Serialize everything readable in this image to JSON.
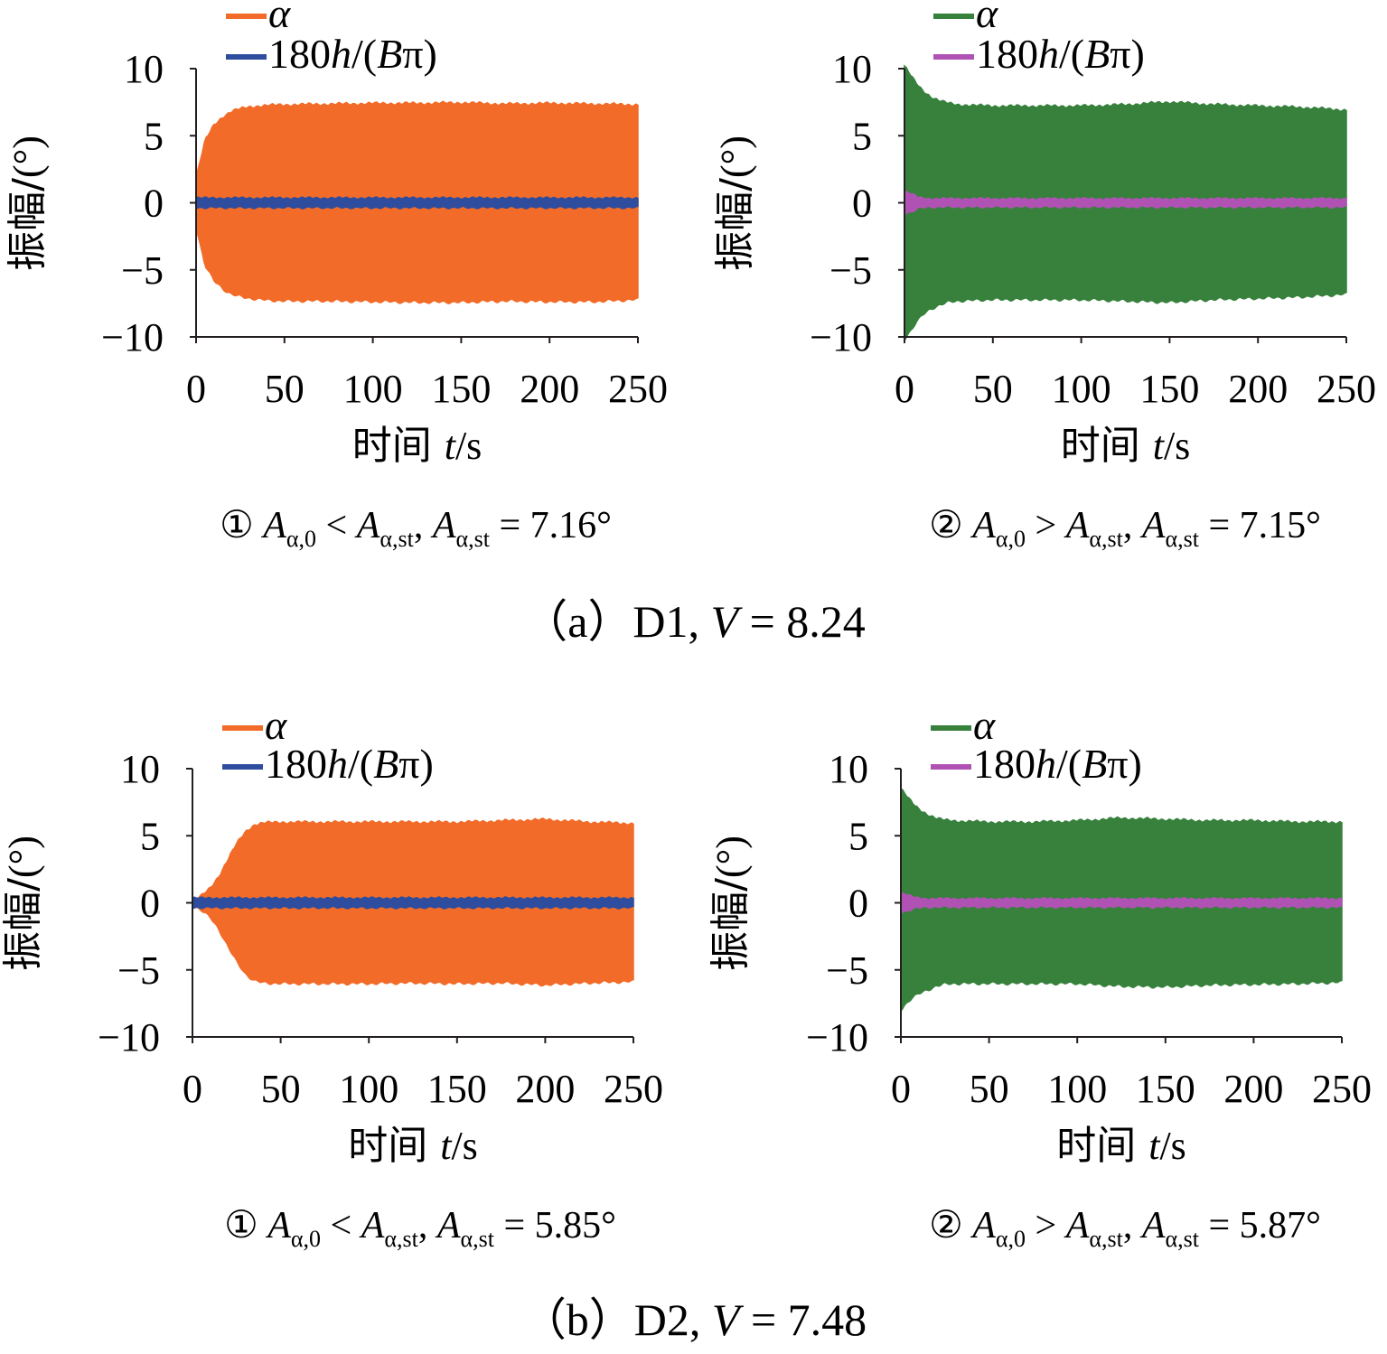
{
  "figure": {
    "group_captions": [
      {
        "prefix": "（a）D1, ",
        "var": "V",
        "rest": " = 8.24"
      },
      {
        "prefix": "（b）D2, ",
        "var": "V",
        "rest": " = 7.48"
      }
    ]
  },
  "chart_data": [
    {
      "type": "area",
      "panel": "a1",
      "xlabel": "时间 t/s",
      "ylabel": "振幅/(°)",
      "xlim": [
        0,
        250
      ],
      "ylim": [
        -10,
        10
      ],
      "xticks": [
        "0",
        "50",
        "100",
        "150",
        "200",
        "250"
      ],
      "yticks": [
        "10",
        "5",
        "0",
        "−5",
        "−10"
      ],
      "caption": "① Aα,0 < Aα,st, Aα,st = 7.16°",
      "series": [
        {
          "name": "α",
          "color": "#f26b28",
          "kind": "envelope",
          "x": [
            0,
            5,
            10,
            15,
            20,
            25,
            30,
            40,
            50,
            75,
            100,
            125,
            150,
            175,
            200,
            225,
            250
          ],
          "upper": [
            1.8,
            4.6,
            5.8,
            6.4,
            6.8,
            7.0,
            7.15,
            7.25,
            7.3,
            7.35,
            7.4,
            7.4,
            7.45,
            7.35,
            7.4,
            7.35,
            7.3
          ],
          "lower": [
            -1.8,
            -4.6,
            -5.8,
            -6.4,
            -6.8,
            -7.0,
            -7.1,
            -7.25,
            -7.3,
            -7.3,
            -7.35,
            -7.4,
            -7.4,
            -7.3,
            -7.35,
            -7.35,
            -7.2
          ]
        },
        {
          "name": "180h/(Bπ)",
          "color": "#2e4d9e",
          "kind": "band",
          "x": [
            0,
            250
          ],
          "upper": [
            0.35,
            0.35
          ],
          "lower": [
            -0.35,
            -0.35
          ]
        }
      ]
    },
    {
      "type": "area",
      "panel": "a2",
      "xlabel": "时间 t/s",
      "ylabel": "振幅/(°)",
      "xlim": [
        0,
        250
      ],
      "ylim": [
        -10,
        10
      ],
      "xticks": [
        "0",
        "50",
        "100",
        "150",
        "200",
        "250"
      ],
      "yticks": [
        "10",
        "5",
        "0",
        "−5",
        "−10"
      ],
      "caption": "② Aα,0 > Aα,st, Aα,st = 7.15°",
      "series": [
        {
          "name": "α",
          "color": "#37813c",
          "kind": "envelope",
          "x": [
            0,
            3,
            6,
            10,
            15,
            20,
            25,
            30,
            40,
            50,
            75,
            100,
            125,
            150,
            175,
            200,
            225,
            250
          ],
          "upper": [
            10.2,
            9.6,
            9.0,
            8.4,
            7.9,
            7.6,
            7.4,
            7.3,
            7.25,
            7.2,
            7.2,
            7.2,
            7.3,
            7.5,
            7.3,
            7.2,
            7.1,
            6.9
          ],
          "lower": [
            -10.2,
            -9.6,
            -9.0,
            -8.4,
            -7.9,
            -7.6,
            -7.4,
            -7.3,
            -7.25,
            -7.2,
            -7.2,
            -7.2,
            -7.3,
            -7.4,
            -7.2,
            -7.1,
            -7.0,
            -6.8
          ]
        },
        {
          "name": "180h/(Bπ)",
          "color": "#b052b4",
          "kind": "band",
          "x": [
            0,
            3,
            8,
            15,
            250
          ],
          "upper": [
            0.8,
            0.7,
            0.4,
            0.3,
            0.3
          ],
          "lower": [
            -0.8,
            -0.7,
            -0.4,
            -0.3,
            -0.3
          ]
        }
      ]
    },
    {
      "type": "area",
      "panel": "b1",
      "xlabel": "时间 t/s",
      "ylabel": "振幅/(°)",
      "xlim": [
        0,
        250
      ],
      "ylim": [
        -10,
        10
      ],
      "xticks": [
        "0",
        "50",
        "100",
        "150",
        "200",
        "250"
      ],
      "yticks": [
        "10",
        "5",
        "0",
        "−5",
        "−10"
      ],
      "caption": "① Aα,0 < Aα,st, Aα,st  = 5.85°",
      "series": [
        {
          "name": "α",
          "color": "#f26b28",
          "kind": "envelope",
          "x": [
            0,
            5,
            10,
            15,
            20,
            25,
            30,
            35,
            40,
            50,
            75,
            100,
            125,
            150,
            175,
            200,
            225,
            250
          ],
          "upper": [
            0.2,
            0.5,
            1.1,
            2.0,
            3.2,
            4.4,
            5.3,
            5.8,
            5.95,
            6.0,
            6.0,
            6.0,
            6.0,
            6.0,
            6.1,
            6.2,
            6.0,
            5.9
          ],
          "lower": [
            -0.2,
            -0.5,
            -1.1,
            -2.0,
            -3.2,
            -4.4,
            -5.3,
            -5.8,
            -5.95,
            -6.0,
            -6.0,
            -6.0,
            -5.95,
            -6.0,
            -5.95,
            -6.1,
            -5.95,
            -5.85
          ]
        },
        {
          "name": "180h/(Bπ)",
          "color": "#2e4d9e",
          "kind": "band",
          "x": [
            0,
            250
          ],
          "upper": [
            0.35,
            0.35
          ],
          "lower": [
            -0.35,
            -0.35
          ]
        }
      ]
    },
    {
      "type": "area",
      "panel": "b2",
      "xlabel": "时间 t/s",
      "ylabel": "振幅/(°)",
      "xlim": [
        0,
        250
      ],
      "ylim": [
        -10,
        10
      ],
      "xticks": [
        "0",
        "50",
        "100",
        "150",
        "200",
        "250"
      ],
      "yticks": [
        "10",
        "5",
        "0",
        "−5",
        "−10"
      ],
      "caption": "② Aα,0 > Aα,st, Aα,st = 5.87°",
      "series": [
        {
          "name": "α",
          "color": "#37813c",
          "kind": "envelope",
          "x": [
            0,
            3,
            6,
            10,
            15,
            20,
            25,
            30,
            40,
            50,
            75,
            100,
            125,
            150,
            175,
            200,
            225,
            250
          ],
          "upper": [
            8.5,
            8.0,
            7.5,
            7.0,
            6.6,
            6.3,
            6.15,
            6.1,
            6.05,
            6.0,
            6.0,
            6.1,
            6.3,
            6.2,
            6.1,
            6.1,
            6.0,
            6.0
          ],
          "lower": [
            -8.0,
            -7.5,
            -7.1,
            -6.8,
            -6.5,
            -6.2,
            -6.05,
            -6.0,
            -6.0,
            -6.0,
            -6.0,
            -6.0,
            -6.2,
            -6.25,
            -6.1,
            -6.05,
            -6.0,
            -5.9
          ]
        },
        {
          "name": "180h/(Bπ)",
          "color": "#b052b4",
          "kind": "band",
          "x": [
            0,
            3,
            8,
            15,
            250
          ],
          "upper": [
            0.7,
            0.6,
            0.4,
            0.3,
            0.3
          ],
          "lower": [
            -0.7,
            -0.6,
            -0.4,
            -0.3,
            -0.3
          ]
        }
      ]
    }
  ]
}
